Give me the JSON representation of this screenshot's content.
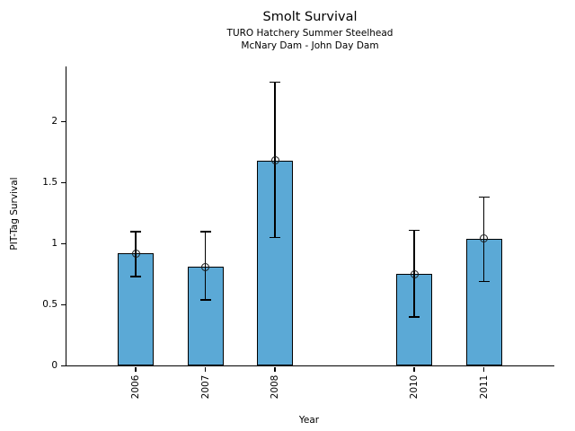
{
  "chart_data": {
    "type": "bar",
    "title": "Smolt Survival",
    "subtitle_line1": "TURO Hatchery Summer Steelhead",
    "subtitle_line2": "McNary Dam - John Day Dam",
    "xlabel": "Year",
    "ylabel": "PIT-Tag Survival",
    "categories": [
      "2006",
      "2007",
      "2008",
      "2010",
      "2011"
    ],
    "x_positions": [
      2006,
      2007,
      2008,
      2010,
      2011
    ],
    "values": [
      0.92,
      0.81,
      1.68,
      0.75,
      1.04
    ],
    "error_low": [
      0.73,
      0.54,
      1.05,
      0.4,
      0.69
    ],
    "error_high": [
      1.1,
      1.1,
      2.32,
      1.11,
      1.38
    ],
    "y_tick_values": [
      0,
      0.5,
      1,
      1.5,
      2
    ],
    "y_tick_labels": [
      "0",
      "0.5",
      "1",
      "1.5",
      "2"
    ],
    "xlim": [
      2005,
      2012
    ],
    "ylim": [
      0,
      2.45
    ],
    "grid": false,
    "legend": null,
    "marker": "open-circle",
    "colors": {
      "bar_fill": "#5BA9D6",
      "bar_edge": "#000000",
      "error_bar": "#000000",
      "text": "#000000",
      "background": "#ffffff"
    }
  }
}
